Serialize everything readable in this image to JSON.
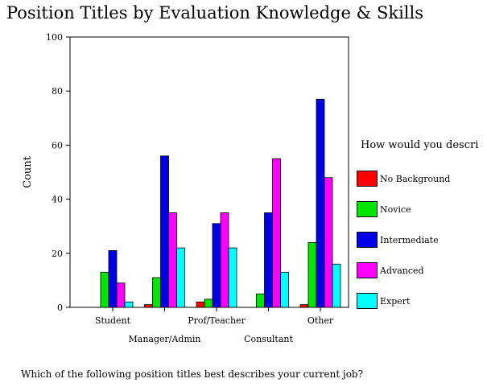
{
  "title": "Position Titles by Evaluation Knowledge & Skills",
  "question": "Which of the following position titles best describes your current job?",
  "chart_data": {
    "type": "bar",
    "ylabel": "Count",
    "xlabel": "",
    "ylim": [
      0,
      100
    ],
    "yticks": [
      0,
      20,
      40,
      60,
      80,
      100
    ],
    "categories": [
      "Student",
      "Manager/Admin",
      "Prof/Teacher",
      "Consultant",
      "Other"
    ],
    "legend_title": "How would you descri",
    "legend_position": "right",
    "series": [
      {
        "name": "No Background",
        "color": "#ff0000",
        "values": [
          0,
          1,
          2,
          0,
          1
        ]
      },
      {
        "name": "Novice",
        "color": "#00e600",
        "values": [
          13,
          11,
          3,
          5,
          24
        ]
      },
      {
        "name": "Intermediate",
        "color": "#0000e6",
        "values": [
          21,
          56,
          31,
          35,
          77
        ]
      },
      {
        "name": "Advanced",
        "color": "#ff00ff",
        "values": [
          9,
          35,
          35,
          55,
          48
        ]
      },
      {
        "name": "Expert",
        "color": "#00ffff",
        "values": [
          2,
          22,
          22,
          13,
          16
        ]
      }
    ]
  }
}
